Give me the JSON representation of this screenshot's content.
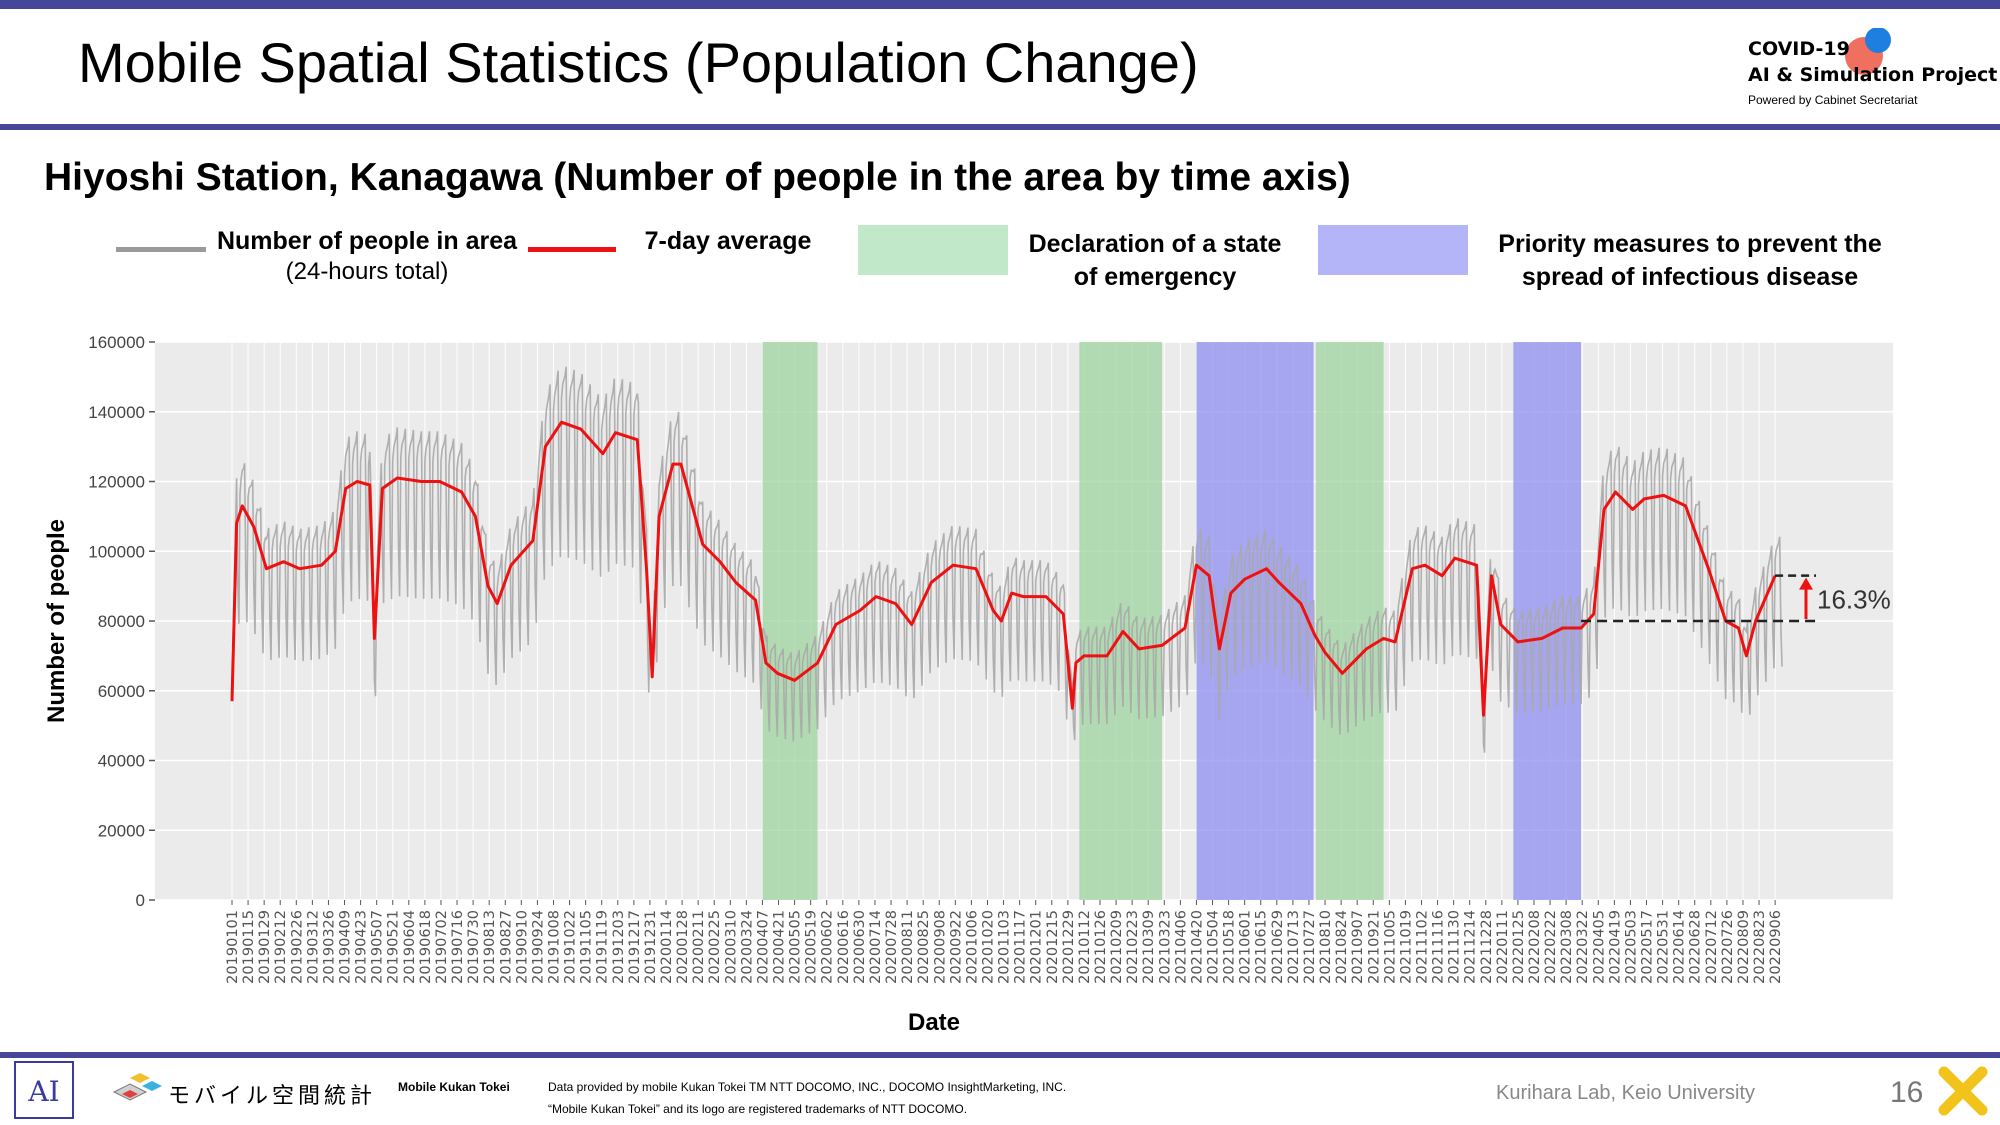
{
  "slide": {
    "title": "Mobile Spatial Statistics (Population Change)",
    "page_number": "16"
  },
  "project_logo": {
    "line1": "COVID-19",
    "line2": "AI & Simulation Project",
    "line3": "Powered by Cabinet Secretariat"
  },
  "legend": {
    "people_label": "Number of people in area",
    "people_sub": "(24-hours total)",
    "avg_label": "7-day average",
    "emergency_label_1": "Declaration of a state",
    "emergency_label_2": "of emergency",
    "priority_label_1": "Priority measures to prevent the",
    "priority_label_2": "spread of infectious disease"
  },
  "footer": {
    "app_name": "モバイル空間統計",
    "brand": "Mobile Kukan Tokei",
    "credit_1": "Data provided by mobile Kukan Tokei TM NTT DOCOMO, INC., DOCOMO InsightMarketing, INC.",
    "credit_2": "“Mobile Kukan Tokei” and its logo are registered trademarks of NTT DOCOMO.",
    "lab": "Kurihara Lab, Keio University"
  },
  "colors": {
    "accent_bar": "#46479a",
    "raw_series": "#a8a8a8",
    "avg_series": "#ee1111",
    "emergency_band": "#9fd49f",
    "priority_band": "#8f8ff2",
    "plot_bg": "#ebebeb"
  },
  "chart_data": {
    "type": "line",
    "title": "Hiyoshi Station, Kanagawa (Number of people in the area by time axis)",
    "xlabel": "Date",
    "ylabel": "Number of people",
    "ylim": [
      0,
      160000
    ],
    "y_ticks": [
      "0",
      "20000",
      "40000",
      "60000",
      "80000",
      "100000",
      "120000",
      "140000",
      "160000"
    ],
    "x_range": [
      "2019-01-01",
      "2022-09-12"
    ],
    "x_tick_labels": [
      "20190101",
      "20190115",
      "20190129",
      "20190212",
      "20190226",
      "20190312",
      "20190326",
      "20190409",
      "20190423",
      "20190507",
      "20190521",
      "20190604",
      "20190618",
      "20190702",
      "20190716",
      "20190730",
      "20190813",
      "20190827",
      "20190910",
      "20190924",
      "20191008",
      "20191022",
      "20191105",
      "20191119",
      "20191203",
      "20191217",
      "20191231",
      "20200114",
      "20200128",
      "20200211",
      "20200225",
      "20200310",
      "20200324",
      "20200407",
      "20200421",
      "20200505",
      "20200519",
      "20200602",
      "20200616",
      "20200630",
      "20200714",
      "20200728",
      "20200811",
      "20200825",
      "20200908",
      "20200922",
      "20201006",
      "20201020",
      "20201103",
      "20201117",
      "20201201",
      "20201215",
      "20201229",
      "20210112",
      "20210126",
      "20210209",
      "20210223",
      "20210309",
      "20210323",
      "20210406",
      "20210420",
      "20210504",
      "20210518",
      "20210601",
      "20210615",
      "20210629",
      "20210713",
      "20210727",
      "20210810",
      "20210824",
      "20210907",
      "20210921",
      "20211005",
      "20211019",
      "20211102",
      "20211116",
      "20211130",
      "20211214",
      "20211228",
      "20220111",
      "20220125",
      "20220208",
      "20220222",
      "20220308",
      "20220322",
      "20220405",
      "20220419",
      "20220503",
      "20220517",
      "20220531",
      "20220614",
      "20220628",
      "20220712",
      "20220726",
      "20220809",
      "20220823",
      "20220906"
    ],
    "grid": true,
    "legend_position": "top",
    "series": [
      {
        "name": "Number of people in area",
        "approx_range": [
          35000,
          157000
        ],
        "weekly_pattern": true
      },
      {
        "name": "7-day average",
        "x": [
          "2019-01-01",
          "2019-01-05",
          "2019-01-10",
          "2019-01-20",
          "2019-01-31",
          "2019-02-15",
          "2019-03-01",
          "2019-03-20",
          "2019-04-01",
          "2019-04-10",
          "2019-04-20",
          "2019-05-01",
          "2019-05-05",
          "2019-05-12",
          "2019-05-25",
          "2019-06-15",
          "2019-07-01",
          "2019-07-20",
          "2019-08-01",
          "2019-08-12",
          "2019-08-20",
          "2019-09-01",
          "2019-09-20",
          "2019-10-01",
          "2019-10-15",
          "2019-11-01",
          "2019-11-20",
          "2019-12-01",
          "2019-12-20",
          "2019-12-28",
          "2020-01-02",
          "2020-01-08",
          "2020-01-20",
          "2020-01-27",
          "2020-02-15",
          "2020-03-01",
          "2020-03-15",
          "2020-04-01",
          "2020-04-10",
          "2020-04-20",
          "2020-05-05",
          "2020-05-25",
          "2020-06-10",
          "2020-07-01",
          "2020-07-15",
          "2020-08-01",
          "2020-08-15",
          "2020-09-01",
          "2020-09-20",
          "2020-10-10",
          "2020-10-25",
          "2020-11-01",
          "2020-11-10",
          "2020-11-20",
          "2020-12-10",
          "2020-12-25",
          "2021-01-02",
          "2021-01-05",
          "2021-01-12",
          "2021-02-01",
          "2021-02-15",
          "2021-03-01",
          "2021-03-21",
          "2021-04-10",
          "2021-04-20",
          "2021-05-01",
          "2021-05-10",
          "2021-05-20",
          "2021-06-01",
          "2021-06-20",
          "2021-07-01",
          "2021-07-20",
          "2021-08-01",
          "2021-08-10",
          "2021-08-25",
          "2021-09-15",
          "2021-09-30",
          "2021-10-10",
          "2021-10-25",
          "2021-11-05",
          "2021-11-20",
          "2021-12-01",
          "2021-12-20",
          "2021-12-26",
          "2022-01-02",
          "2022-01-10",
          "2022-01-25",
          "2022-02-15",
          "2022-03-05",
          "2022-03-21",
          "2022-04-01",
          "2022-04-10",
          "2022-04-20",
          "2022-05-05",
          "2022-05-15",
          "2022-06-01",
          "2022-06-20",
          "2022-07-10",
          "2022-07-25",
          "2022-08-05",
          "2022-08-12",
          "2022-08-20",
          "2022-09-06"
        ],
        "y": [
          57000,
          108000,
          113000,
          107000,
          95000,
          97000,
          95000,
          96000,
          100000,
          118000,
          120000,
          119000,
          75000,
          118000,
          121000,
          120000,
          120000,
          117000,
          110000,
          90000,
          85000,
          96000,
          103000,
          130000,
          137000,
          135000,
          128000,
          134000,
          132000,
          95000,
          64000,
          110000,
          125000,
          125000,
          102000,
          97000,
          91000,
          86000,
          68000,
          65000,
          63000,
          68000,
          79000,
          83000,
          87000,
          85000,
          79000,
          91000,
          96000,
          95000,
          83000,
          80000,
          88000,
          87000,
          87000,
          82000,
          55000,
          68000,
          70000,
          70000,
          77000,
          72000,
          73000,
          78000,
          96000,
          93000,
          72000,
          88000,
          92000,
          95000,
          91000,
          85000,
          76000,
          71000,
          65000,
          72000,
          75000,
          74000,
          95000,
          96000,
          93000,
          98000,
          96000,
          53000,
          93000,
          79000,
          74000,
          75000,
          78000,
          78000,
          82000,
          112000,
          117000,
          112000,
          115000,
          116000,
          113000,
          95000,
          80000,
          78000,
          70000,
          80000,
          93000
        ]
      }
    ],
    "shaded_periods": [
      {
        "type": "Declaration of a state of emergency",
        "start": "2020-04-07",
        "end": "2020-05-25"
      },
      {
        "type": "Declaration of a state of emergency",
        "start": "2021-01-08",
        "end": "2021-03-21"
      },
      {
        "type": "Priority measures to prevent the spread of infectious disease",
        "start": "2021-04-20",
        "end": "2021-07-31"
      },
      {
        "type": "Declaration of a state of emergency",
        "start": "2021-08-02",
        "end": "2021-09-30"
      },
      {
        "type": "Priority measures to prevent the spread of infectious disease",
        "start": "2022-01-21",
        "end": "2022-03-21"
      }
    ],
    "annotation": {
      "label": "16.3%",
      "baseline": 80000,
      "current": 93000
    }
  }
}
